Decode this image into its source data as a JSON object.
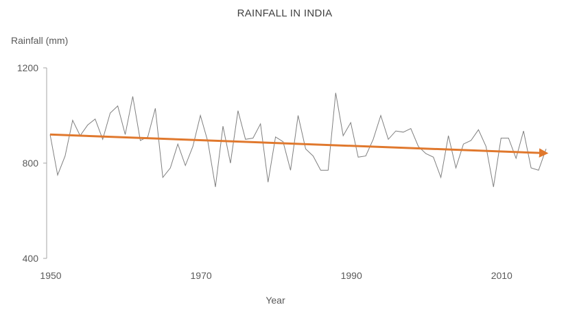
{
  "chart_data": {
    "type": "line",
    "title": "RAINFALL IN INDIA",
    "xlabel": "Year",
    "ylabel": "Rainfall (mm)",
    "xlim": [
      1950,
      2016
    ],
    "ylim": [
      400,
      1200
    ],
    "x_ticks": [
      1950,
      1970,
      1990,
      2010
    ],
    "y_ticks": [
      400,
      800,
      1200
    ],
    "grid": false,
    "legend": "none",
    "series": [
      {
        "color": "#7f7f7f",
        "x": [
          1950,
          1951,
          1952,
          1953,
          1954,
          1955,
          1956,
          1957,
          1958,
          1959,
          1960,
          1961,
          1962,
          1963,
          1964,
          1965,
          1966,
          1967,
          1968,
          1969,
          1970,
          1971,
          1972,
          1973,
          1974,
          1975,
          1976,
          1977,
          1978,
          1979,
          1980,
          1981,
          1982,
          1983,
          1984,
          1985,
          1986,
          1987,
          1988,
          1989,
          1990,
          1991,
          1992,
          1993,
          1994,
          1995,
          1996,
          1997,
          1998,
          1999,
          2000,
          2001,
          2002,
          2003,
          2004,
          2005,
          2006,
          2007,
          2008,
          2009,
          2010,
          2011,
          2012,
          2013,
          2014,
          2015,
          2016
        ],
        "values": [
          920,
          750,
          830,
          980,
          915,
          960,
          985,
          900,
          1010,
          1040,
          920,
          1080,
          895,
          910,
          1030,
          740,
          780,
          880,
          790,
          870,
          1000,
          890,
          700,
          955,
          800,
          1020,
          900,
          905,
          965,
          720,
          910,
          890,
          770,
          1000,
          860,
          830,
          770,
          770,
          1095,
          915,
          970,
          825,
          830,
          900,
          1000,
          900,
          935,
          930,
          945,
          870,
          840,
          825,
          740,
          915,
          780,
          880,
          895,
          940,
          870,
          700,
          905,
          905,
          820,
          935,
          780,
          770,
          860
        ]
      }
    ],
    "trendline": {
      "color": "#e0782d",
      "x": [
        1950,
        2016
      ],
      "values": [
        920,
        842
      ]
    }
  }
}
